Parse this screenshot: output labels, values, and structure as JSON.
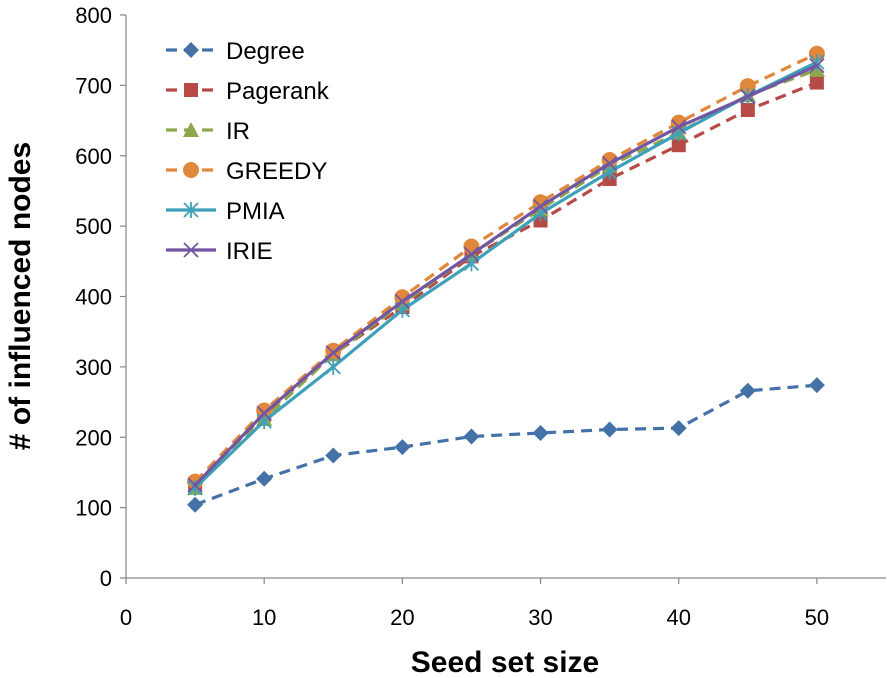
{
  "chart_data": {
    "type": "line",
    "title": "",
    "xlabel": "Seed set size",
    "ylabel": "# of influenced nodes",
    "xlim": [
      0,
      55
    ],
    "ylim": [
      0,
      800
    ],
    "xticks": [
      0,
      10,
      20,
      30,
      40,
      50
    ],
    "yticks": [
      0,
      100,
      200,
      300,
      400,
      500,
      600,
      700,
      800
    ],
    "x": [
      5,
      10,
      15,
      20,
      25,
      30,
      35,
      40,
      45,
      50
    ],
    "legend_position": "top-left",
    "grid": false,
    "series": [
      {
        "name": "Degree",
        "color": "#4472a8",
        "dash": true,
        "marker": "diamond",
        "values": [
          104,
          141,
          174,
          186,
          201,
          206,
          211,
          213,
          266,
          274
        ]
      },
      {
        "name": "Pagerank",
        "color": "#b64a47",
        "dash": true,
        "marker": "square",
        "values": [
          133,
          232,
          318,
          385,
          457,
          508,
          567,
          615,
          665,
          704
        ]
      },
      {
        "name": "IR",
        "color": "#8ca74e",
        "dash": true,
        "marker": "triangle",
        "values": [
          128,
          226,
          318,
          390,
          460,
          524,
          586,
          633,
          686,
          722
        ]
      },
      {
        "name": "GREEDY",
        "color": "#e1873a",
        "dash": true,
        "marker": "circle",
        "values": [
          137,
          238,
          323,
          399,
          471,
          534,
          594,
          647,
          699,
          745
        ]
      },
      {
        "name": "PMIA",
        "color": "#3ea0b9",
        "dash": false,
        "marker": "asterisk",
        "values": [
          128,
          223,
          300,
          381,
          447,
          518,
          577,
          632,
          685,
          733
        ]
      },
      {
        "name": "IRIE",
        "color": "#7356a2",
        "dash": false,
        "marker": "x",
        "values": [
          132,
          234,
          320,
          393,
          460,
          528,
          589,
          641,
          684,
          728
        ]
      }
    ]
  }
}
